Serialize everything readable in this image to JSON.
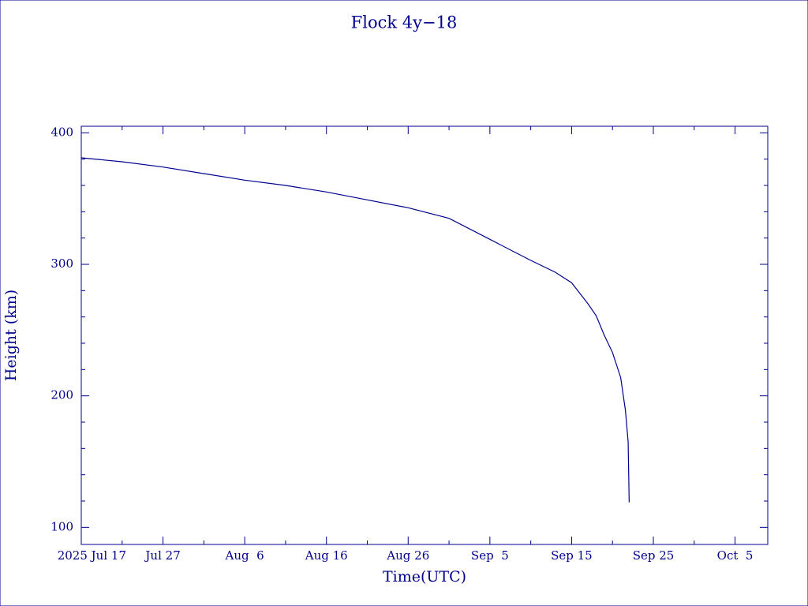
{
  "chart_data": {
    "type": "line",
    "title": "Flock 4y−18",
    "x_label": "Time(UTC)",
    "y_label": "Height (km)",
    "color": "#00008f",
    "x": [
      "2025-07-17",
      "2025-07-22",
      "2025-07-27",
      "2025-08-01",
      "2025-08-06",
      "2025-08-11",
      "2025-08-16",
      "2025-08-21",
      "2025-08-26",
      "2025-08-31",
      "2025-09-05",
      "2025-09-10",
      "2025-09-13",
      "2025-09-15",
      "2025-09-17",
      "2025-09-18",
      "2025-09-19",
      "2025-09-20",
      "2025-09-21",
      "2025-09-21T14:00",
      "2025-09-21T22:00",
      "2025-09-22T01:00"
    ],
    "values": [
      381,
      378,
      374,
      369,
      364,
      360,
      355,
      349,
      343,
      335,
      319,
      303,
      294,
      286,
      270,
      261,
      246,
      233,
      214,
      189,
      165,
      119
    ],
    "xlim": [
      "2025-07-17",
      "2025-10-09"
    ],
    "xticks": [
      {
        "value": "2025-07-17",
        "label": "2025 Jul 17"
      },
      {
        "value": "2025-07-27",
        "label": "Jul 27"
      },
      {
        "value": "2025-08-06",
        "label": "Aug  6"
      },
      {
        "value": "2025-08-16",
        "label": "Aug 16"
      },
      {
        "value": "2025-08-26",
        "label": "Aug 26"
      },
      {
        "value": "2025-09-05",
        "label": "Sep  5"
      },
      {
        "value": "2025-09-15",
        "label": "Sep 15"
      },
      {
        "value": "2025-09-25",
        "label": "Sep 25"
      },
      {
        "value": "2025-10-05",
        "label": "Oct  5"
      }
    ],
    "xticks_minor": [
      "2025-07-22",
      "2025-08-01",
      "2025-08-11",
      "2025-08-21",
      "2025-08-31",
      "2025-09-10",
      "2025-09-20",
      "2025-09-30"
    ],
    "ylim": [
      87,
      405
    ],
    "yticks": [
      100,
      200,
      300,
      400
    ],
    "yticks_minor": [
      120,
      140,
      160,
      180,
      220,
      240,
      260,
      280,
      320,
      340,
      360,
      380
    ],
    "grid": false
  }
}
